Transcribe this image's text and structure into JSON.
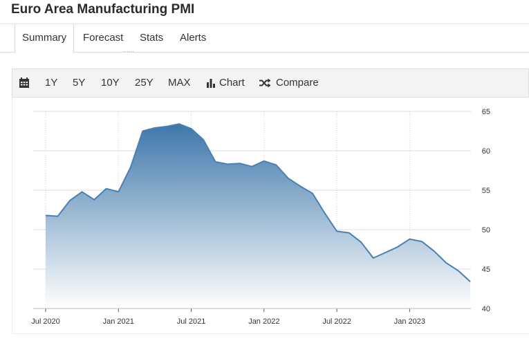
{
  "header": {
    "title": "Euro Area Manufacturing PMI"
  },
  "tabs": [
    {
      "label": "Summary",
      "active": true
    },
    {
      "label": "Forecast",
      "active": false
    },
    {
      "label": "Stats",
      "active": false
    },
    {
      "label": "Alerts",
      "active": false
    }
  ],
  "tab_ghost_text": "......",
  "toolbar": {
    "calendar_icon": "calendar-icon",
    "ranges": [
      "1Y",
      "5Y",
      "10Y",
      "25Y",
      "MAX"
    ],
    "chart_label": "Chart",
    "chart_icon": "bar-chart-icon",
    "compare_label": "Compare",
    "compare_icon": "shuffle-icon"
  },
  "chart_data": {
    "type": "area",
    "title": "",
    "xlabel": "",
    "ylabel": "",
    "ylim": [
      40,
      65
    ],
    "yticks": [
      "65",
      "60",
      "55",
      "50",
      "45",
      "40"
    ],
    "x_tick_labels": [
      "Jul 2020",
      "Jan 2021",
      "Jul 2021",
      "Jan 2022",
      "Jul 2022",
      "Jan 2023"
    ],
    "x_tick_dates": [
      "2020-07",
      "2021-01",
      "2021-07",
      "2022-01",
      "2022-07",
      "2023-01"
    ],
    "y_axis_position": "right",
    "grid": true,
    "line_color": "#4a7fb0",
    "fill_top_color": "#3e77ab",
    "fill_bottom_color": "#ffffff",
    "series": [
      {
        "dates": [
          "2020-07",
          "2020-08",
          "2020-09",
          "2020-10",
          "2020-11",
          "2020-12",
          "2021-01",
          "2021-02",
          "2021-03",
          "2021-04",
          "2021-05",
          "2021-06",
          "2021-07",
          "2021-08",
          "2021-09",
          "2021-10",
          "2021-11",
          "2021-12",
          "2022-01",
          "2022-02",
          "2022-03",
          "2022-04",
          "2022-05",
          "2022-06",
          "2022-07",
          "2022-08",
          "2022-09",
          "2022-10",
          "2022-11",
          "2022-12",
          "2023-01",
          "2023-02",
          "2023-03",
          "2023-04",
          "2023-05",
          "2023-06"
        ],
        "values": [
          51.8,
          51.7,
          53.7,
          54.8,
          53.8,
          55.2,
          54.8,
          57.9,
          62.5,
          62.9,
          63.1,
          63.4,
          62.8,
          61.4,
          58.6,
          58.3,
          58.4,
          58.0,
          58.7,
          58.2,
          56.5,
          55.5,
          54.6,
          52.1,
          49.8,
          49.6,
          48.4,
          46.4,
          47.1,
          47.8,
          48.8,
          48.5,
          47.3,
          45.8,
          44.8,
          43.4
        ]
      }
    ]
  }
}
